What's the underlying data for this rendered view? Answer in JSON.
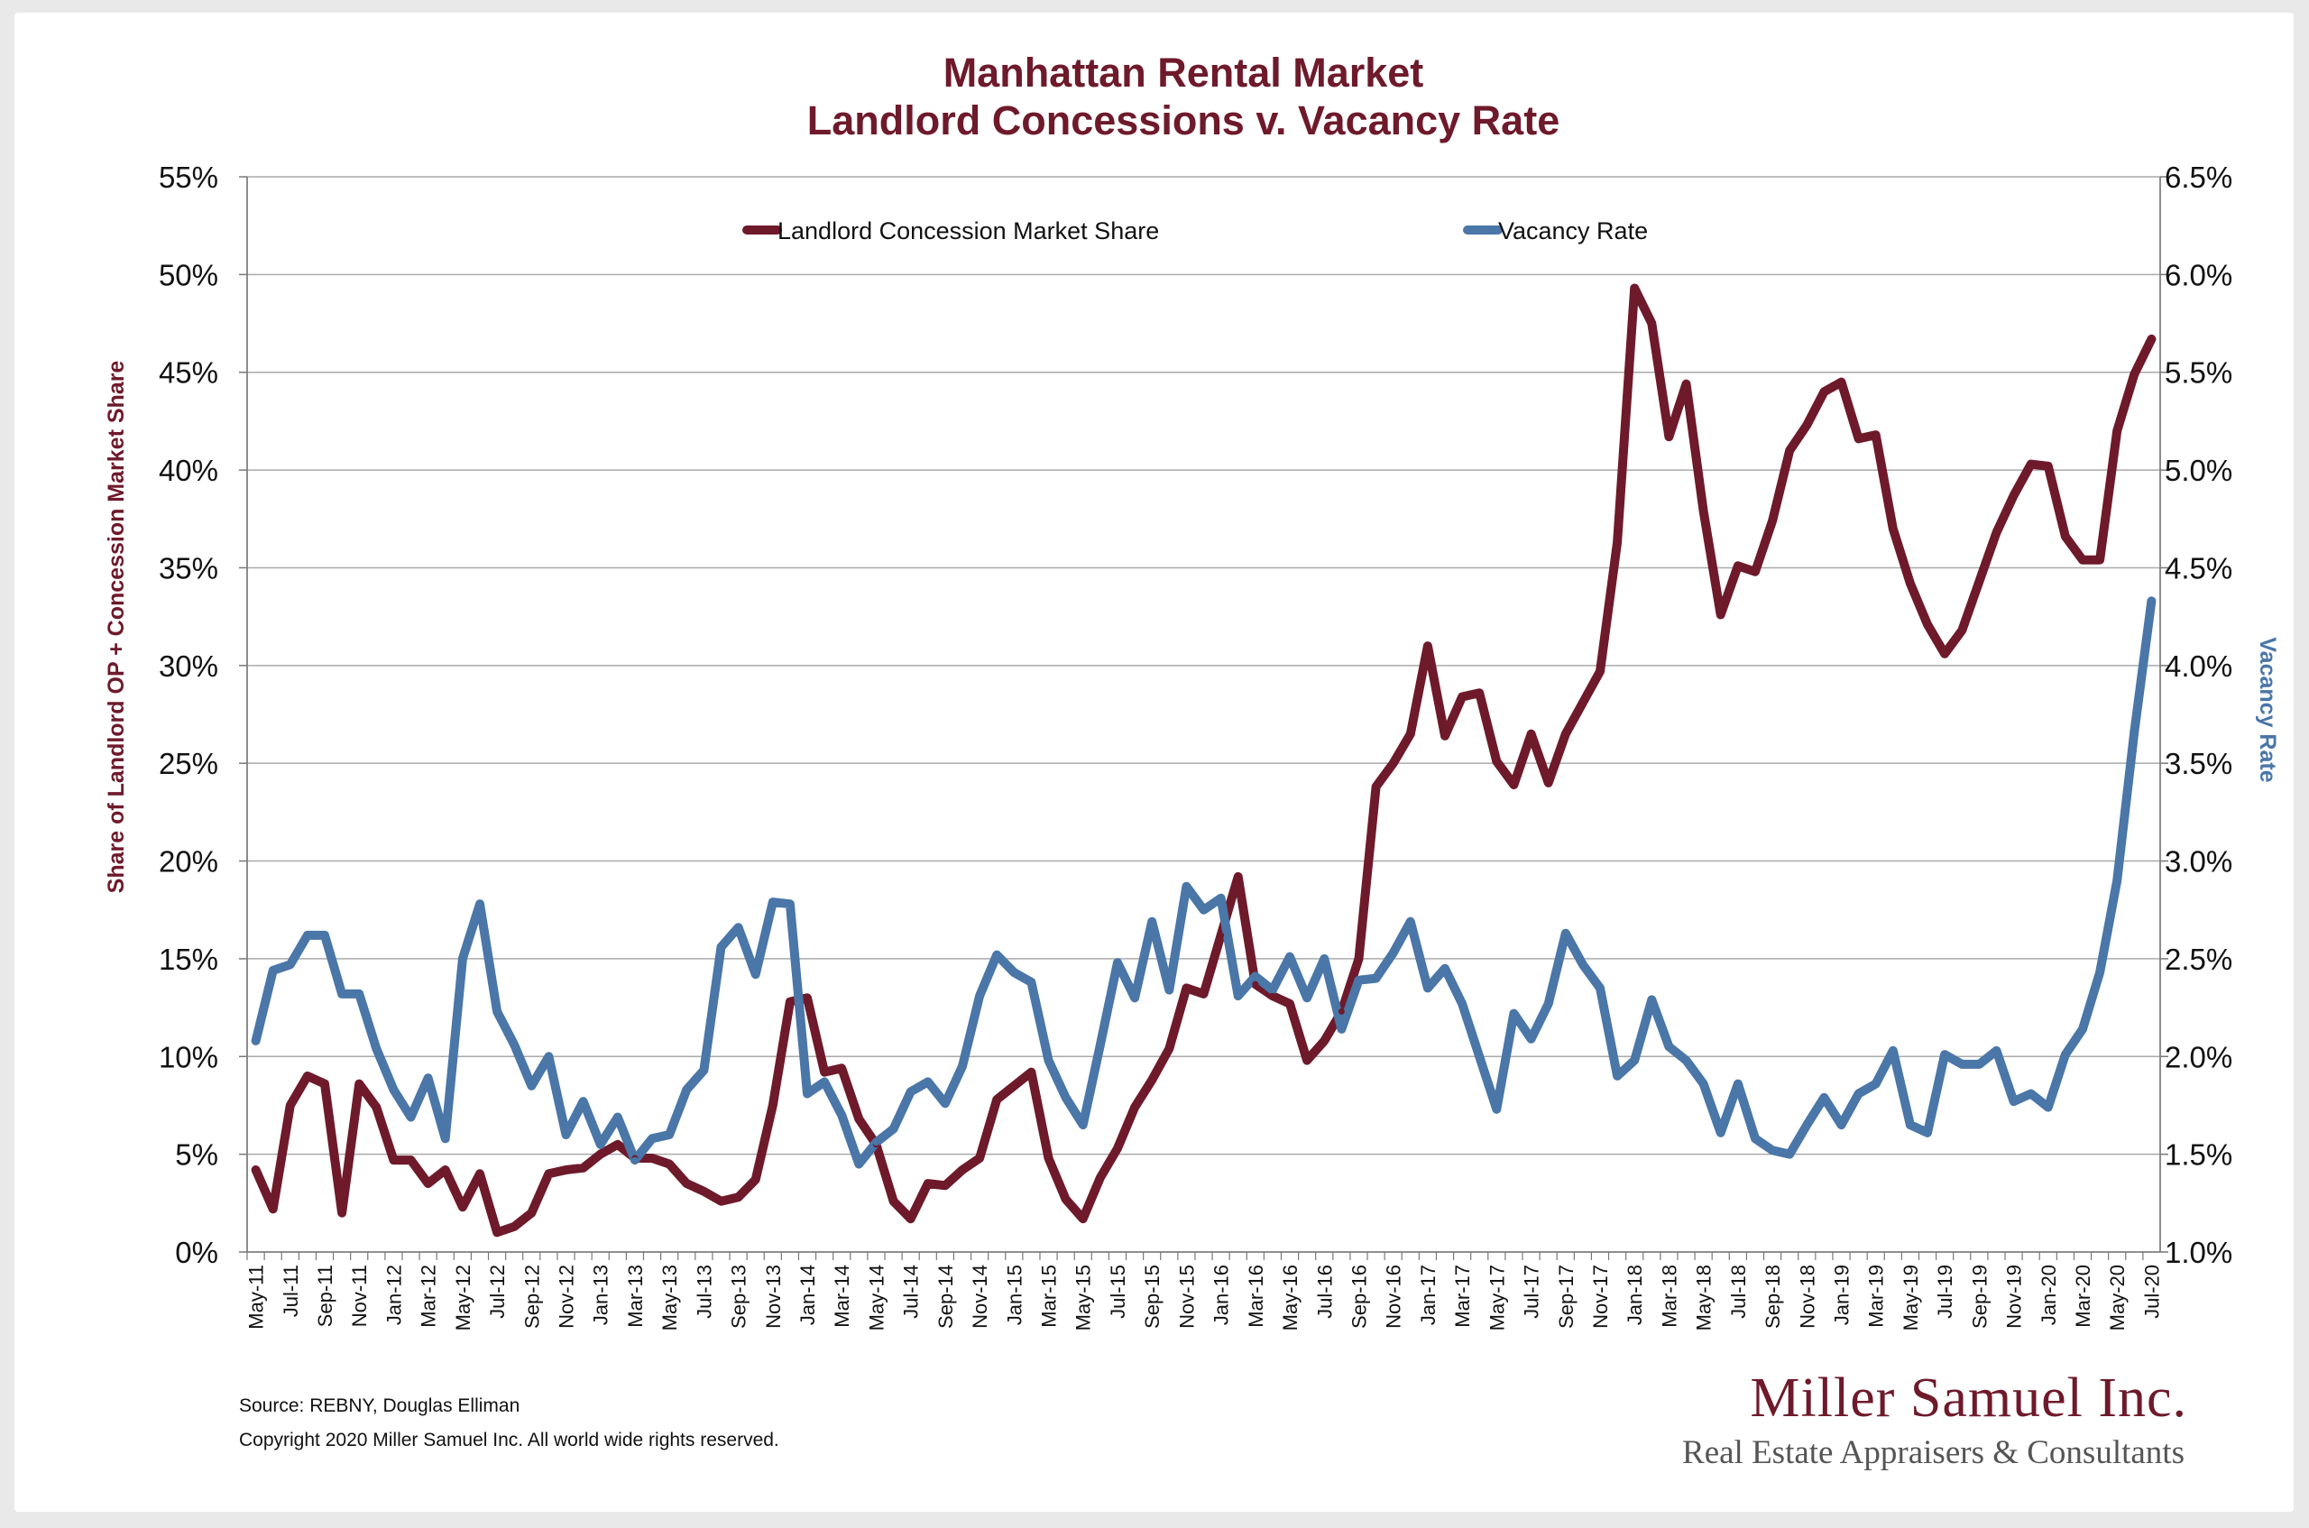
{
  "chart_data": {
    "type": "line",
    "title_line1": "Manhattan Rental Market",
    "title_line2": "Landlord Concessions v. Vacancy Rate",
    "ylabel_left": "Share of Landlord OP + Concession Market Share",
    "ylabel_right": "Vacancy Rate",
    "ylim_left": [
      0,
      55
    ],
    "ylim_right": [
      1.0,
      6.5
    ],
    "yticks_left": [
      "0%",
      "5%",
      "10%",
      "15%",
      "20%",
      "25%",
      "30%",
      "35%",
      "40%",
      "45%",
      "50%",
      "55%"
    ],
    "yticks_right": [
      "1.0%",
      "1.5%",
      "2.0%",
      "2.5%",
      "3.0%",
      "3.5%",
      "4.0%",
      "4.5%",
      "5.0%",
      "5.5%",
      "6.0%",
      "6.5%"
    ],
    "grid": true,
    "legend_position": "top",
    "x_labels": [
      "May-11",
      "Jul-11",
      "Sep-11",
      "Nov-11",
      "Jan-12",
      "Mar-12",
      "May-12",
      "Jul-12",
      "Sep-12",
      "Nov-12",
      "Jan-13",
      "Mar-13",
      "May-13",
      "Jul-13",
      "Sep-13",
      "Nov-13",
      "Jan-14",
      "Mar-14",
      "May-14",
      "Jul-14",
      "Sep-14",
      "Nov-14",
      "Jan-15",
      "Mar-15",
      "May-15",
      "Jul-15",
      "Sep-15",
      "Nov-15",
      "Jan-16",
      "Mar-16",
      "May-16",
      "Jul-16",
      "Sep-16",
      "Nov-16",
      "Jan-17",
      "Mar-17",
      "May-17",
      "Jul-17",
      "Sep-17",
      "Nov-17",
      "Jan-18",
      "Mar-18",
      "May-18",
      "Jul-18",
      "Sep-18",
      "Nov-18",
      "Jan-19",
      "Mar-19",
      "May-19",
      "Jul-19",
      "Sep-19",
      "Nov-19",
      "Jan-20",
      "Mar-20",
      "May-20",
      "Jul-20"
    ],
    "series": [
      {
        "name": "Landlord Concession Market Share",
        "axis": "left",
        "color": "#6e1a2b",
        "values": [
          4.2,
          2.2,
          7.5,
          9.0,
          8.6,
          2.0,
          8.6,
          7.4,
          4.7,
          4.7,
          3.5,
          4.2,
          2.3,
          4.0,
          1.0,
          1.3,
          2.0,
          4.0,
          4.2,
          4.3,
          5.0,
          5.5,
          4.8,
          4.8,
          4.5,
          3.5,
          3.1,
          2.6,
          2.8,
          3.7,
          7.5,
          12.8,
          13.0,
          9.2,
          9.4,
          6.8,
          5.5,
          2.6,
          1.7,
          3.5,
          3.4,
          4.2,
          4.8,
          7.8,
          8.5,
          9.2,
          4.8,
          2.7,
          1.7,
          3.8,
          5.3,
          7.4,
          8.8,
          10.4,
          13.5,
          13.2,
          16.2,
          19.2,
          13.7,
          13.1,
          12.7,
          9.8,
          10.8,
          12.3,
          15.0,
          23.8,
          25.0,
          26.5,
          31.0,
          26.4,
          28.4,
          28.6,
          25.1,
          23.9,
          26.5,
          24.0,
          26.5,
          28.1,
          29.7,
          36.3,
          49.3,
          47.5,
          41.7,
          44.4,
          37.9,
          32.6,
          35.1,
          34.8,
          37.4,
          41.0,
          42.3,
          44.0,
          44.5,
          41.6,
          41.8,
          37.0,
          34.2,
          32.1,
          30.6,
          31.8,
          34.3,
          36.8,
          38.7,
          40.3,
          40.2,
          36.6,
          35.4,
          35.4,
          42.0,
          44.9,
          46.7
        ]
      },
      {
        "name": "Vacancy Rate",
        "axis": "right",
        "color": "#4a76a8",
        "values": [
          2.08,
          2.44,
          2.47,
          2.62,
          2.62,
          2.32,
          2.32,
          2.04,
          1.83,
          1.69,
          1.89,
          1.58,
          2.5,
          2.78,
          2.23,
          2.06,
          1.85,
          2.0,
          1.6,
          1.77,
          1.55,
          1.69,
          1.47,
          1.58,
          1.6,
          1.83,
          1.93,
          2.56,
          2.66,
          2.42,
          2.79,
          2.78,
          1.81,
          1.87,
          1.7,
          1.45,
          1.56,
          1.63,
          1.82,
          1.87,
          1.76,
          1.95,
          2.31,
          2.52,
          2.43,
          2.38,
          1.98,
          1.79,
          1.65,
          2.06,
          2.48,
          2.3,
          2.69,
          2.34,
          2.87,
          2.75,
          2.81,
          2.31,
          2.41,
          2.34,
          2.51,
          2.3,
          2.5,
          2.14,
          2.39,
          2.4,
          2.53,
          2.69,
          2.35,
          2.45,
          2.27,
          2.0,
          1.73,
          2.22,
          2.09,
          2.27,
          2.63,
          2.47,
          2.35,
          1.9,
          1.98,
          2.29,
          2.05,
          1.98,
          1.86,
          1.61,
          1.86,
          1.58,
          1.52,
          1.5,
          1.65,
          1.79,
          1.65,
          1.81,
          1.86,
          2.03,
          1.65,
          1.61,
          2.01,
          1.96,
          1.96,
          2.03,
          1.77,
          1.81,
          1.74,
          2.01,
          2.14,
          2.43,
          2.9,
          3.66,
          4.33
        ]
      }
    ]
  },
  "source_text": "Source: REBNY, Douglas Elliman",
  "copyright_text": "Copyright 2020 Miller Samuel Inc.  All world wide rights reserved.",
  "logo": {
    "name_line": "Miller Samuel Inc.",
    "tagline": "Real Estate Appraisers & Consultants"
  },
  "colors": {
    "title": "#6e1a2b",
    "concession": "#6e1a2b",
    "vacancy": "#4a76a8",
    "grid": "#aaaaaa"
  }
}
